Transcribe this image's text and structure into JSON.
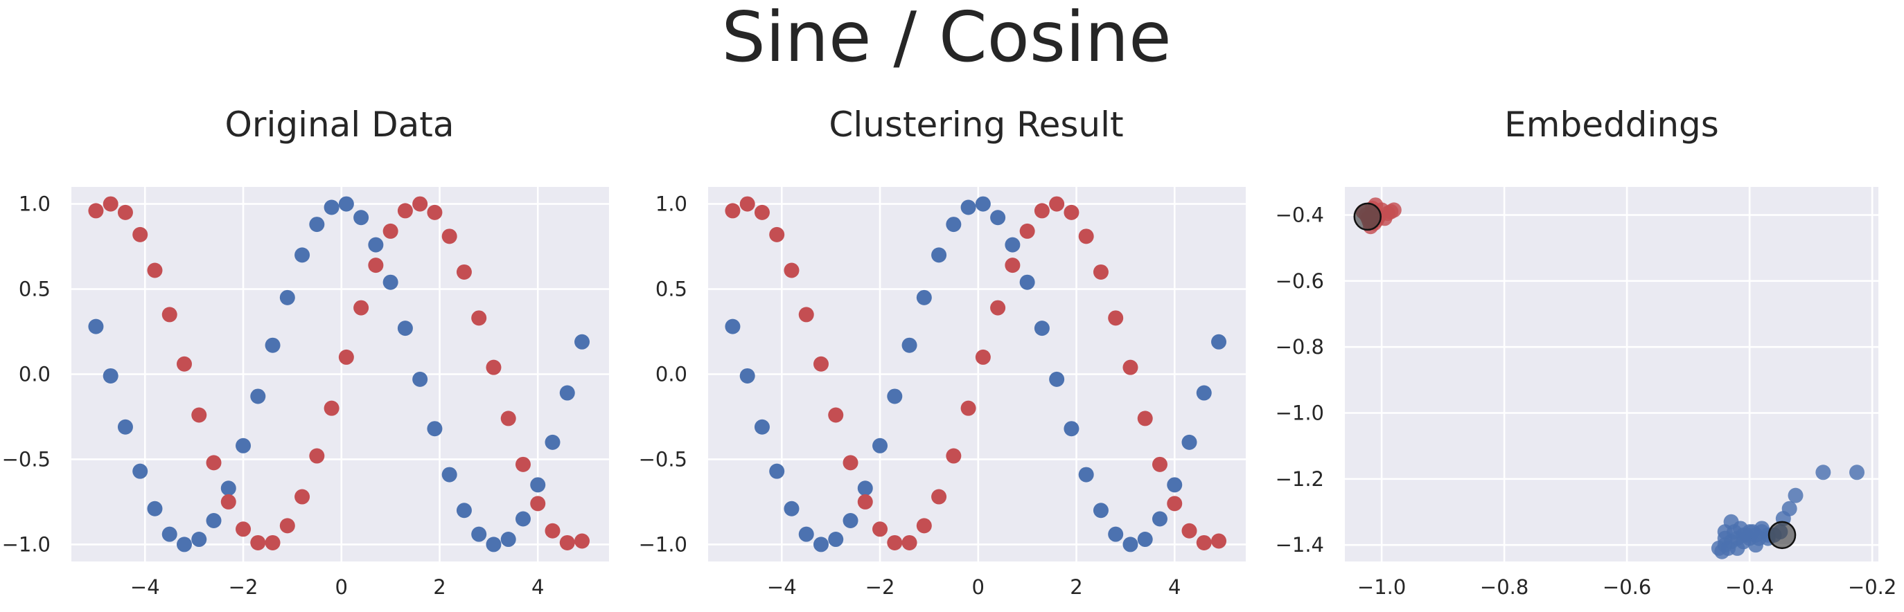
{
  "figure": {
    "title": "Sine / Cosine"
  },
  "colors": {
    "background": "#eaeaf2",
    "grid": "#ffffff",
    "blue": "#4c72b0",
    "red": "#c44e52",
    "centroid": "#444444"
  },
  "chart_data": [
    {
      "type": "scatter",
      "title": "Original Data",
      "xlabel": "",
      "ylabel": "",
      "xlim": [
        -5.5,
        5.45
      ],
      "ylim": [
        -1.1,
        1.1
      ],
      "xticks": [
        -4,
        -2,
        0,
        2,
        4
      ],
      "yticks": [
        1.0,
        0.5,
        0.0,
        -0.5,
        -1.0
      ],
      "xtick_labels": [
        "−4",
        "−2",
        "0",
        "2",
        "4"
      ],
      "ytick_labels": [
        "1.0",
        "0.5",
        "0.0",
        "−0.5",
        "−1.0"
      ],
      "grid": true,
      "series": [
        {
          "color": "blue",
          "points": [
            [
              -5.0,
              0.28
            ],
            [
              -4.7,
              -0.01
            ],
            [
              -4.4,
              -0.31
            ],
            [
              -4.1,
              -0.57
            ],
            [
              -3.8,
              -0.79
            ],
            [
              -3.5,
              -0.94
            ],
            [
              -3.2,
              -1.0
            ],
            [
              -2.9,
              -0.97
            ],
            [
              -2.6,
              -0.86
            ],
            [
              -2.3,
              -0.67
            ],
            [
              -2.0,
              -0.42
            ],
            [
              -1.7,
              -0.13
            ],
            [
              -1.4,
              0.17
            ],
            [
              -1.1,
              0.45
            ],
            [
              -0.8,
              0.7
            ],
            [
              -0.5,
              0.88
            ],
            [
              -0.2,
              0.98
            ],
            [
              0.1,
              1.0
            ],
            [
              0.4,
              0.92
            ],
            [
              0.7,
              0.76
            ],
            [
              1.0,
              0.54
            ],
            [
              1.3,
              0.27
            ],
            [
              1.6,
              -0.03
            ],
            [
              1.9,
              -0.32
            ],
            [
              2.2,
              -0.59
            ],
            [
              2.5,
              -0.8
            ],
            [
              2.8,
              -0.94
            ],
            [
              3.1,
              -1.0
            ],
            [
              3.4,
              -0.97
            ],
            [
              3.7,
              -0.85
            ],
            [
              4.0,
              -0.65
            ],
            [
              4.3,
              -0.4
            ],
            [
              4.6,
              -0.11
            ],
            [
              4.9,
              0.19
            ]
          ]
        },
        {
          "color": "red",
          "points": [
            [
              -5.0,
              0.96
            ],
            [
              -4.7,
              1.0
            ],
            [
              -4.4,
              0.95
            ],
            [
              -4.1,
              0.82
            ],
            [
              -3.8,
              0.61
            ],
            [
              -3.5,
              0.35
            ],
            [
              -3.2,
              0.06
            ],
            [
              -2.9,
              -0.24
            ],
            [
              -2.6,
              -0.52
            ],
            [
              -2.3,
              -0.75
            ],
            [
              -2.0,
              -0.91
            ],
            [
              -1.7,
              -0.99
            ],
            [
              -1.4,
              -0.99
            ],
            [
              -1.1,
              -0.89
            ],
            [
              -0.8,
              -0.72
            ],
            [
              -0.5,
              -0.48
            ],
            [
              -0.2,
              -0.2
            ],
            [
              0.1,
              0.1
            ],
            [
              0.4,
              0.39
            ],
            [
              0.7,
              0.64
            ],
            [
              1.0,
              0.84
            ],
            [
              1.3,
              0.96
            ],
            [
              1.6,
              1.0
            ],
            [
              1.9,
              0.95
            ],
            [
              2.2,
              0.81
            ],
            [
              2.5,
              0.6
            ],
            [
              2.8,
              0.33
            ],
            [
              3.1,
              0.04
            ],
            [
              3.4,
              -0.26
            ],
            [
              3.7,
              -0.53
            ],
            [
              4.0,
              -0.76
            ],
            [
              4.3,
              -0.92
            ],
            [
              4.6,
              -0.99
            ],
            [
              4.9,
              -0.98
            ]
          ]
        }
      ]
    },
    {
      "type": "scatter",
      "title": "Clustering Result",
      "xlabel": "",
      "ylabel": "",
      "xlim": [
        -5.5,
        5.45
      ],
      "ylim": [
        -1.1,
        1.1
      ],
      "xticks": [
        -4,
        -2,
        0,
        2,
        4
      ],
      "yticks": [
        1.0,
        0.5,
        0.0,
        -0.5,
        -1.0
      ],
      "xtick_labels": [
        "−4",
        "−2",
        "0",
        "2",
        "4"
      ],
      "ytick_labels": [
        "1.0",
        "0.5",
        "0.0",
        "−0.5",
        "−1.0"
      ],
      "grid": true,
      "series": [
        {
          "color": "blue",
          "points": [
            [
              -5.0,
              0.28
            ],
            [
              -4.7,
              -0.01
            ],
            [
              -4.4,
              -0.31
            ],
            [
              -4.1,
              -0.57
            ],
            [
              -3.8,
              -0.79
            ],
            [
              -3.5,
              -0.94
            ],
            [
              -3.2,
              -1.0
            ],
            [
              -2.9,
              -0.97
            ],
            [
              -2.6,
              -0.86
            ],
            [
              -2.3,
              -0.67
            ],
            [
              -2.0,
              -0.42
            ],
            [
              -1.7,
              -0.13
            ],
            [
              -1.4,
              0.17
            ],
            [
              -1.1,
              0.45
            ],
            [
              -0.8,
              0.7
            ],
            [
              -0.5,
              0.88
            ],
            [
              -0.2,
              0.98
            ],
            [
              0.1,
              1.0
            ],
            [
              0.4,
              0.92
            ],
            [
              0.7,
              0.76
            ],
            [
              1.0,
              0.54
            ],
            [
              1.3,
              0.27
            ],
            [
              1.6,
              -0.03
            ],
            [
              1.9,
              -0.32
            ],
            [
              2.2,
              -0.59
            ],
            [
              2.5,
              -0.8
            ],
            [
              2.8,
              -0.94
            ],
            [
              3.1,
              -1.0
            ],
            [
              3.4,
              -0.97
            ],
            [
              3.7,
              -0.85
            ],
            [
              4.0,
              -0.65
            ],
            [
              4.3,
              -0.4
            ],
            [
              4.6,
              -0.11
            ],
            [
              4.9,
              0.19
            ]
          ]
        },
        {
          "color": "red",
          "points": [
            [
              -5.0,
              0.96
            ],
            [
              -4.7,
              1.0
            ],
            [
              -4.4,
              0.95
            ],
            [
              -4.1,
              0.82
            ],
            [
              -3.8,
              0.61
            ],
            [
              -3.5,
              0.35
            ],
            [
              -3.2,
              0.06
            ],
            [
              -2.9,
              -0.24
            ],
            [
              -2.6,
              -0.52
            ],
            [
              -2.3,
              -0.75
            ],
            [
              -2.0,
              -0.91
            ],
            [
              -1.7,
              -0.99
            ],
            [
              -1.4,
              -0.99
            ],
            [
              -1.1,
              -0.89
            ],
            [
              -0.8,
              -0.72
            ],
            [
              -0.5,
              -0.48
            ],
            [
              -0.2,
              -0.2
            ],
            [
              0.1,
              0.1
            ],
            [
              0.4,
              0.39
            ],
            [
              0.7,
              0.64
            ],
            [
              1.0,
              0.84
            ],
            [
              1.3,
              0.96
            ],
            [
              1.6,
              1.0
            ],
            [
              1.9,
              0.95
            ],
            [
              2.2,
              0.81
            ],
            [
              2.5,
              0.6
            ],
            [
              2.8,
              0.33
            ],
            [
              3.1,
              0.04
            ],
            [
              3.4,
              -0.26
            ],
            [
              3.7,
              -0.53
            ],
            [
              4.0,
              -0.76
            ],
            [
              4.3,
              -0.92
            ],
            [
              4.6,
              -0.99
            ],
            [
              4.9,
              -0.98
            ]
          ]
        }
      ]
    },
    {
      "type": "scatter",
      "title": "Embeddings",
      "xlabel": "",
      "ylabel": "",
      "xlim": [
        -1.06,
        -0.19
      ],
      "ylim": [
        -1.45,
        -0.315
      ],
      "xticks": [
        -1.0,
        -0.8,
        -0.6,
        -0.4,
        -0.2
      ],
      "yticks": [
        -0.4,
        -0.6,
        -0.8,
        -1.0,
        -1.2,
        -1.4
      ],
      "xtick_labels": [
        "−1.0",
        "−0.8",
        "−0.6",
        "−0.4",
        "−0.2"
      ],
      "ytick_labels": [
        "−0.4",
        "−0.6",
        "−0.8",
        "−1.0",
        "−1.2",
        "−1.4"
      ],
      "grid": true,
      "series": [
        {
          "color": "red",
          "points": [
            [
              -1.025,
              -0.4
            ],
            [
              -1.02,
              -0.42
            ],
            [
              -1.015,
              -0.38
            ],
            [
              -1.01,
              -0.37
            ],
            [
              -1.005,
              -0.405
            ],
            [
              -1.0,
              -0.385
            ],
            [
              -0.995,
              -0.41
            ],
            [
              -0.99,
              -0.395
            ],
            [
              -0.985,
              -0.39
            ],
            [
              -0.98,
              -0.385
            ],
            [
              -1.018,
              -0.435
            ],
            [
              -1.012,
              -0.425
            ],
            [
              -1.022,
              -0.41
            ],
            [
              -1.03,
              -0.39
            ],
            [
              -1.008,
              -0.415
            ]
          ]
        },
        {
          "color": "blue",
          "points": [
            [
              -0.45,
              -1.41
            ],
            [
              -0.44,
              -1.4
            ],
            [
              -0.44,
              -1.36
            ],
            [
              -0.43,
              -1.33
            ],
            [
              -0.43,
              -1.39
            ],
            [
              -0.42,
              -1.38
            ],
            [
              -0.42,
              -1.41
            ],
            [
              -0.41,
              -1.37
            ],
            [
              -0.41,
              -1.39
            ],
            [
              -0.4,
              -1.36
            ],
            [
              -0.4,
              -1.38
            ],
            [
              -0.39,
              -1.37
            ],
            [
              -0.39,
              -1.4
            ],
            [
              -0.38,
              -1.35
            ],
            [
              -0.38,
              -1.36
            ],
            [
              -0.37,
              -1.37
            ],
            [
              -0.37,
              -1.38
            ],
            [
              -0.36,
              -1.37
            ],
            [
              -0.35,
              -1.36
            ],
            [
              -0.345,
              -1.32
            ],
            [
              -0.335,
              -1.29
            ],
            [
              -0.325,
              -1.25
            ],
            [
              -0.28,
              -1.18
            ],
            [
              -0.225,
              -1.18
            ],
            [
              -0.44,
              -1.38
            ],
            [
              -0.425,
              -1.36
            ],
            [
              -0.415,
              -1.35
            ],
            [
              -0.405,
              -1.37
            ],
            [
              -0.395,
              -1.36
            ],
            [
              -0.385,
              -1.38
            ],
            [
              -0.435,
              -1.41
            ],
            [
              -0.445,
              -1.42
            ]
          ]
        },
        {
          "color": "centroid",
          "role": "centroid",
          "points": [
            [
              -1.023,
              -0.405
            ],
            [
              -0.347,
              -1.37
            ]
          ]
        }
      ]
    }
  ]
}
